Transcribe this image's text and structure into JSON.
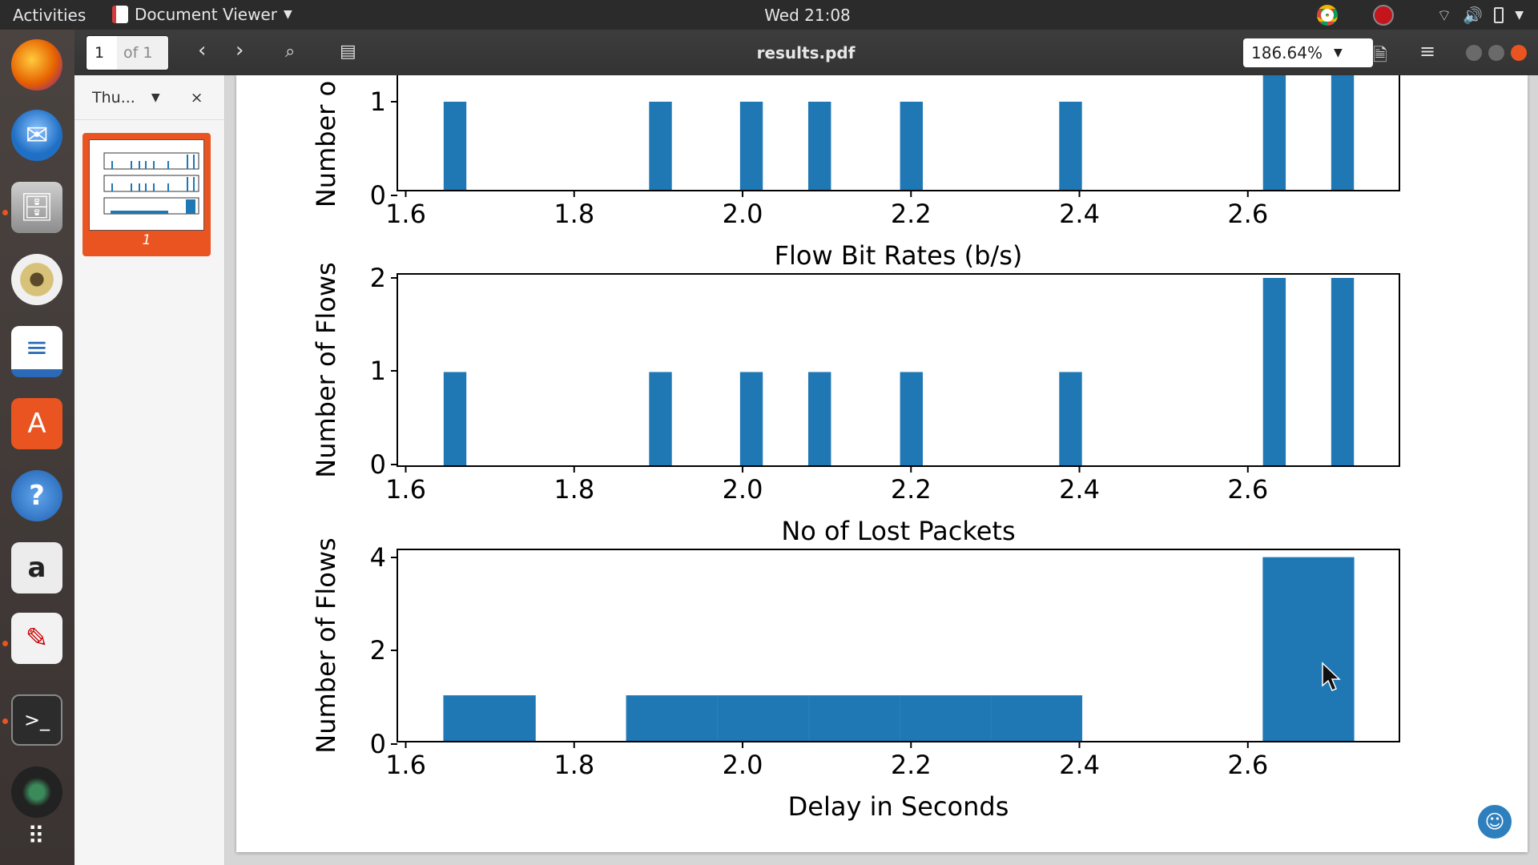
{
  "topbar": {
    "activities": "Activities",
    "app_name": "Document Viewer",
    "clock": "Wed 21:08"
  },
  "dock": {
    "items": [
      {
        "name": "firefox-icon",
        "color": "#e66000"
      },
      {
        "name": "thunderbird-icon",
        "color": "#1f6fc5"
      },
      {
        "name": "files-icon",
        "color": "#9c9c9c"
      },
      {
        "name": "rhythmbox-icon",
        "color": "#d8c27a"
      },
      {
        "name": "libreoffice-writer-icon",
        "color": "#2a6ab8"
      },
      {
        "name": "software-center-icon",
        "color": "#e95420"
      },
      {
        "name": "help-icon",
        "color": "#3c8ad8"
      },
      {
        "name": "amazon-icon",
        "color": "#e0e0e0"
      },
      {
        "name": "text-editor-icon",
        "color": "#f2f2f2"
      },
      {
        "name": "terminal-icon",
        "color": "#2c2c2c"
      },
      {
        "name": "webcam-icon",
        "color": "#333333"
      },
      {
        "name": "app-grid-icon",
        "color": "#ffffff"
      }
    ]
  },
  "headerbar": {
    "page_current": "1",
    "page_total": "of 1",
    "document_title": "results.pdf",
    "zoom": "186.64%"
  },
  "sidebar": {
    "mode_label": "Thu...",
    "close_label": "×",
    "thumbnail_page": "1"
  },
  "chart_data": [
    {
      "type": "bar",
      "title": "",
      "xlabel": "Flow Bit Rates (b/s)",
      "ylabel": "Number o",
      "x_ticks": [
        "1.6",
        "1.8",
        "2.0",
        "2.2",
        "2.4",
        "2.6"
      ],
      "y_ticks": [
        "0",
        "1"
      ],
      "ylim": [
        0,
        2.1
      ],
      "xlim": [
        1.59,
        2.78
      ],
      "bins": [
        [
          1.645,
          1.672,
          1
        ],
        [
          1.889,
          1.916,
          1
        ],
        [
          1.997,
          2.024,
          1
        ],
        [
          2.078,
          2.105,
          1
        ],
        [
          2.187,
          2.214,
          1
        ],
        [
          2.376,
          2.403,
          1
        ],
        [
          2.618,
          2.645,
          2
        ],
        [
          2.699,
          2.726,
          2
        ]
      ]
    },
    {
      "type": "bar",
      "title": "",
      "xlabel": "No of Lost Packets",
      "ylabel": "Number of Flows",
      "x_ticks": [
        "1.6",
        "1.8",
        "2.0",
        "2.2",
        "2.4",
        "2.6"
      ],
      "y_ticks": [
        "0",
        "1",
        "2"
      ],
      "ylim": [
        0,
        2.1
      ],
      "xlim": [
        1.59,
        2.78
      ],
      "bins": [
        [
          1.645,
          1.672,
          1
        ],
        [
          1.889,
          1.916,
          1
        ],
        [
          1.997,
          2.024,
          1
        ],
        [
          2.078,
          2.105,
          1
        ],
        [
          2.187,
          2.214,
          1
        ],
        [
          2.376,
          2.403,
          1
        ],
        [
          2.618,
          2.645,
          2
        ],
        [
          2.699,
          2.726,
          2
        ]
      ]
    },
    {
      "type": "bar",
      "title": "",
      "xlabel": "Delay in Seconds",
      "ylabel": "Number of Flows",
      "x_ticks": [
        "1.6",
        "1.8",
        "2.0",
        "2.2",
        "2.4",
        "2.6"
      ],
      "y_ticks": [
        "0",
        "2",
        "4"
      ],
      "ylim": [
        0,
        4.2
      ],
      "xlim": [
        1.59,
        2.78
      ],
      "bins": [
        [
          1.645,
          1.754,
          1
        ],
        [
          1.862,
          1.97,
          1
        ],
        [
          1.97,
          2.079,
          1
        ],
        [
          2.079,
          2.187,
          1
        ],
        [
          2.187,
          2.295,
          1
        ],
        [
          2.295,
          2.403,
          1
        ],
        [
          2.618,
          2.726,
          4
        ]
      ]
    }
  ],
  "colors": {
    "bar": "#1f77b4",
    "accent": "#e95420"
  }
}
